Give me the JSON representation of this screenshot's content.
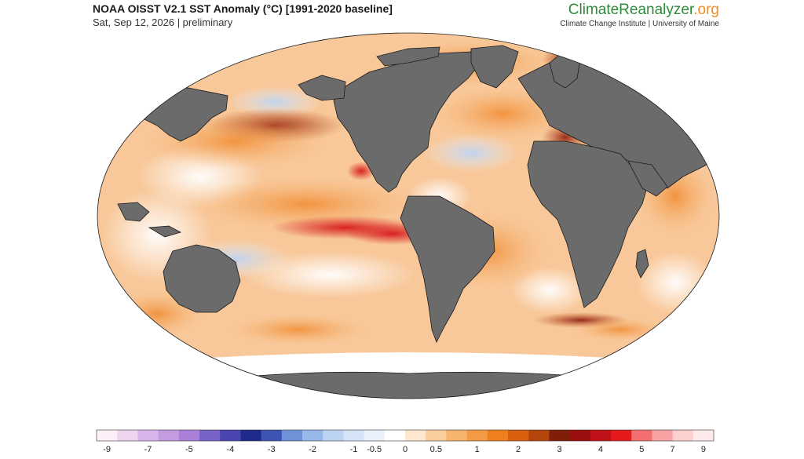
{
  "header": {
    "title": "NOAA OISST V2.1 SST Anomaly (°C) [1991-2020 baseline]",
    "subtitle": "Sat, Sep 12, 2026 | preliminary"
  },
  "brand": {
    "name_part1": "ClimateReanalyzer",
    "name_part2": ".org",
    "tagline": "Climate Change Institute | University of Maine"
  },
  "colors": {
    "land": "#6b6b6b",
    "ice": "#ffffff",
    "coastline": "#1a1a1a"
  },
  "legend": {
    "colors": [
      "#fdeff7",
      "#eed5ef",
      "#d8b5ea",
      "#c39ce0",
      "#a97fd8",
      "#7863c8",
      "#4a45b0",
      "#1f2a8a",
      "#3c55b5",
      "#6e91d8",
      "#97b9ea",
      "#bcd3f3",
      "#d6e4f8",
      "#e9f1fb",
      "#ffffff",
      "#fde7cf",
      "#f9cd9c",
      "#f6b46f",
      "#f39a45",
      "#ef7f1c",
      "#d95f0f",
      "#b4450d",
      "#7f1f0a",
      "#9a0e0e",
      "#c1121a",
      "#e41a1c",
      "#f36f6f",
      "#f7a3a3",
      "#fbd0cf",
      "#fdeaea"
    ],
    "ticks": [
      {
        "label": "-9",
        "index": 0.5
      },
      {
        "label": "-7",
        "index": 2.5
      },
      {
        "label": "-5",
        "index": 4.5
      },
      {
        "label": "-4",
        "index": 6.5
      },
      {
        "label": "-3",
        "index": 8.5
      },
      {
        "label": "-2",
        "index": 10.5
      },
      {
        "label": "-1",
        "index": 12.5
      },
      {
        "label": "-0.5",
        "index": 13.5
      },
      {
        "label": "0",
        "index": 15
      },
      {
        "label": "0.5",
        "index": 16.5
      },
      {
        "label": "1",
        "index": 18.5
      },
      {
        "label": "2",
        "index": 20.5
      },
      {
        "label": "3",
        "index": 22.5
      },
      {
        "label": "4",
        "index": 24.5
      },
      {
        "label": "5",
        "index": 26.5
      },
      {
        "label": "7",
        "index": 28
      },
      {
        "label": "9",
        "index": 29.5
      }
    ]
  }
}
